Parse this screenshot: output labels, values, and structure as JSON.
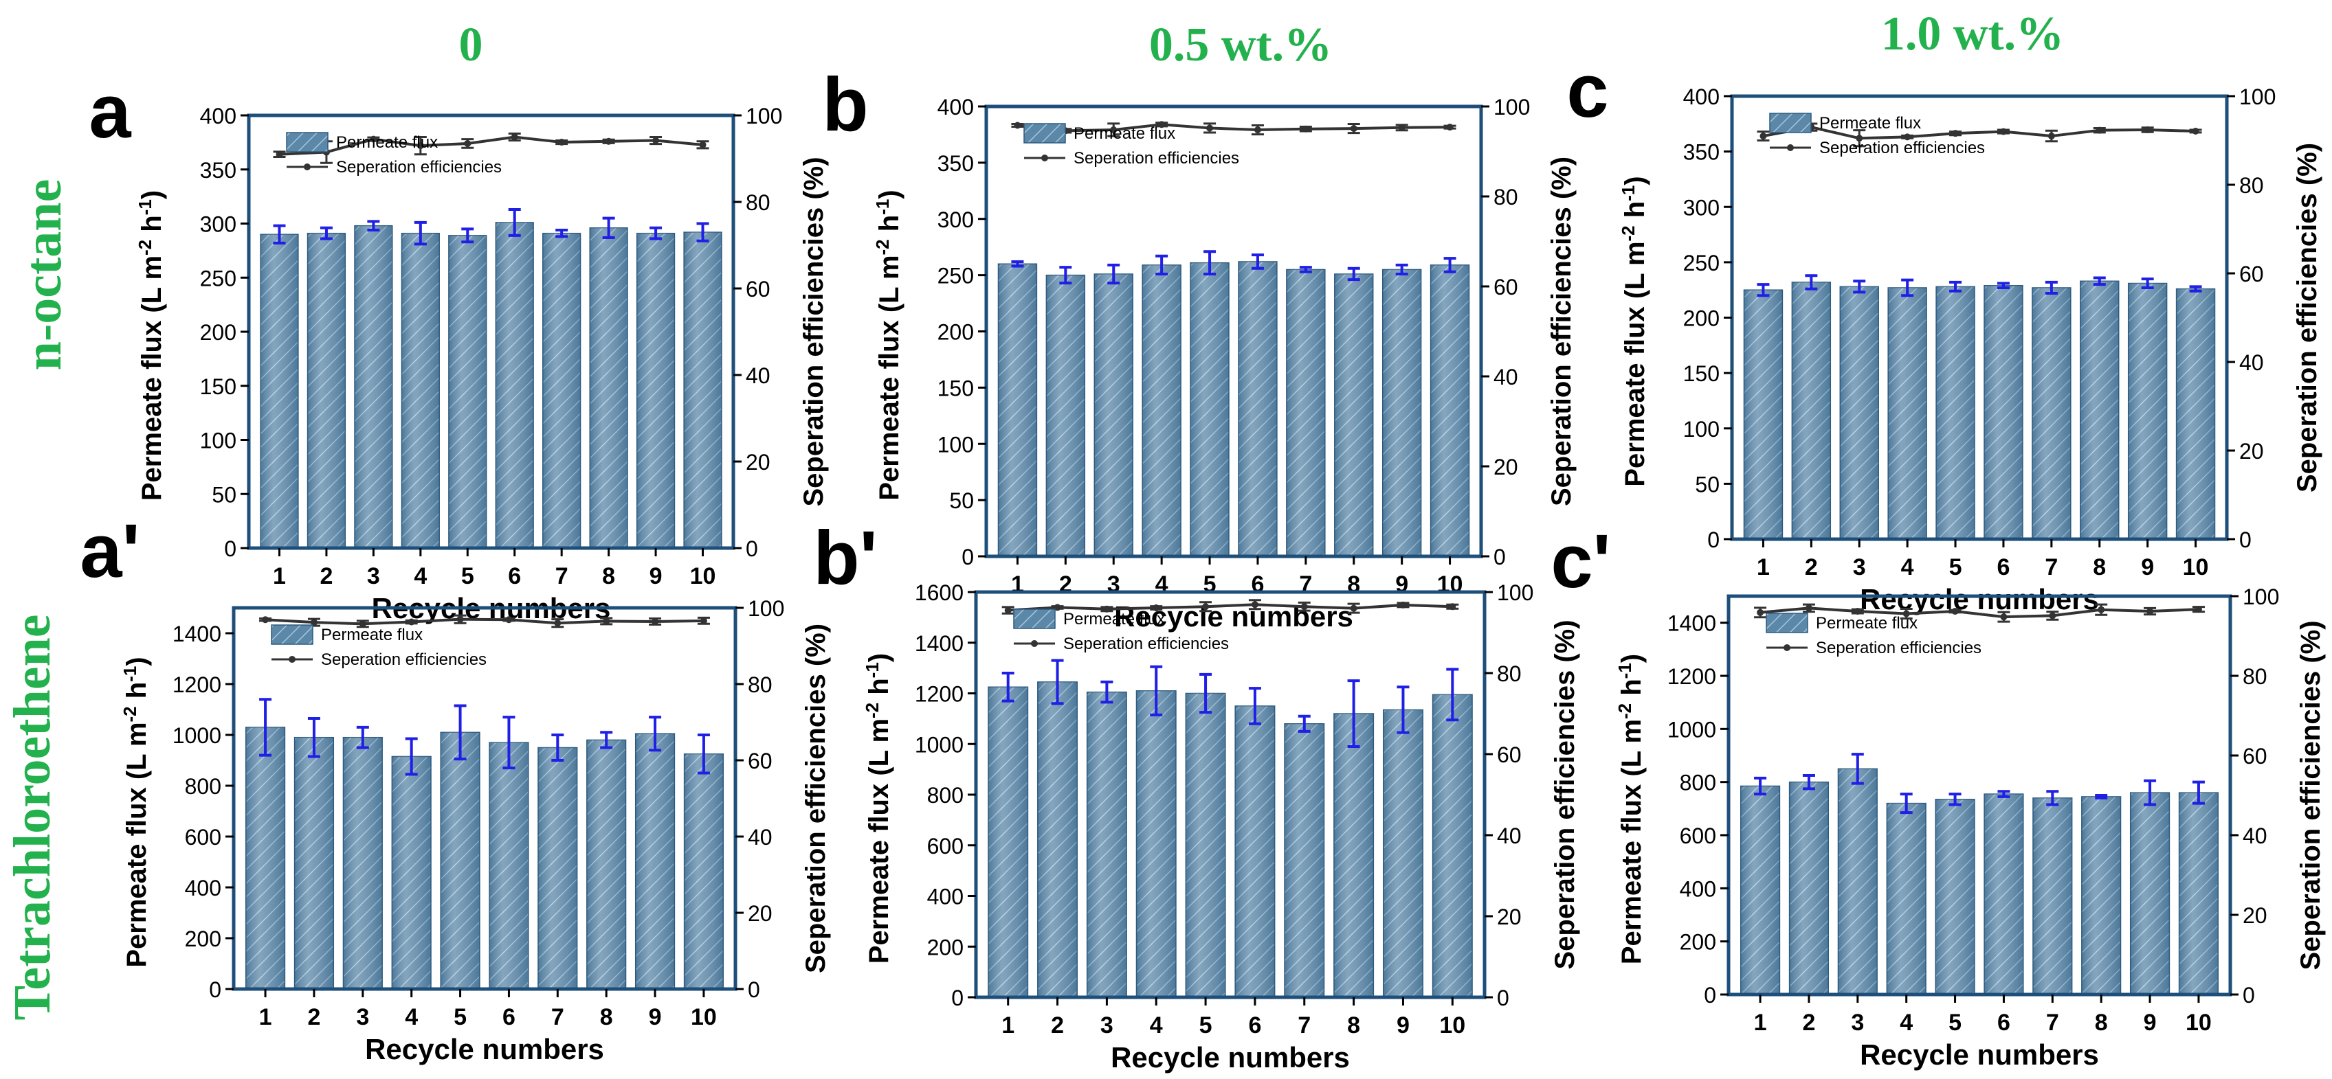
{
  "header": {
    "columns": [
      "0",
      "0.5 wt.%",
      "1.0 wt.%"
    ],
    "rows": [
      "n-octane",
      "Tetrachloroethene"
    ],
    "label_color": "#22b14c"
  },
  "styling": {
    "bar_color": "#5b87a8",
    "bar_highlight": "#a9c5da",
    "error_color": "#1f1fe6",
    "line_color": "#333333",
    "axis_color": "#1d4f7a"
  },
  "chart_data": [
    {
      "panel_label": "a",
      "type": "bar",
      "categories": [
        "1",
        "2",
        "3",
        "4",
        "5",
        "6",
        "7",
        "8",
        "9",
        "10"
      ],
      "series": [
        {
          "name": "Permeate flux",
          "axis": "left",
          "values": [
            290,
            291,
            298,
            291,
            289,
            301,
            291,
            296,
            291,
            292
          ],
          "errors": [
            8,
            5,
            4,
            10,
            6,
            12,
            3,
            9,
            5,
            8
          ]
        },
        {
          "name": "Seperation efficiencies",
          "axis": "right",
          "kind": "line",
          "values": [
            91,
            91.5,
            94.5,
            93,
            93.5,
            95,
            93.8,
            94,
            94.2,
            93.2
          ],
          "errors": [
            0.6,
            2.5,
            0.4,
            2,
            1,
            0.8,
            0.4,
            0.4,
            0.8,
            0.8
          ]
        }
      ],
      "xlabel": "Recycle numbers",
      "ylabel": "Permeate flux (L m⁻² h⁻¹)",
      "y2label": "Seperation efficiencies (%)",
      "ylim": [
        0,
        400
      ],
      "yticks": [
        0,
        50,
        100,
        150,
        200,
        250,
        300,
        350,
        400
      ],
      "y2lim": [
        0,
        100
      ],
      "y2ticks": [
        0,
        20,
        40,
        60,
        80,
        100
      ],
      "legend": "top-left"
    },
    {
      "panel_label": "b",
      "type": "bar",
      "categories": [
        "1",
        "2",
        "3",
        "4",
        "5",
        "6",
        "7",
        "8",
        "9",
        "10"
      ],
      "series": [
        {
          "name": "Permeate flux",
          "axis": "left",
          "values": [
            260,
            250,
            251,
            259,
            261,
            262,
            255,
            251,
            255,
            259
          ],
          "errors": [
            2,
            7,
            8,
            8,
            10,
            6,
            2,
            5,
            4,
            6
          ]
        },
        {
          "name": "Seperation efficiencies",
          "axis": "right",
          "kind": "line",
          "values": [
            95.8,
            94.6,
            94.8,
            96,
            95.2,
            94.8,
            95,
            95.1,
            95.3,
            95.4
          ],
          "errors": [
            0.3,
            0.4,
            1.4,
            0.4,
            1,
            1,
            0.5,
            1,
            0.6,
            0.3
          ]
        }
      ],
      "xlabel": "Recycle numbers",
      "ylabel": "Permeate flux (L m⁻² h⁻¹)",
      "y2label": "Seperation efficiencies (%)",
      "ylim": [
        0,
        400
      ],
      "yticks": [
        0,
        50,
        100,
        150,
        200,
        250,
        300,
        350,
        400
      ],
      "y2lim": [
        0,
        100
      ],
      "y2ticks": [
        0,
        20,
        40,
        60,
        80,
        100
      ],
      "legend": "top-left"
    },
    {
      "panel_label": "c",
      "type": "bar",
      "categories": [
        "1",
        "2",
        "3",
        "4",
        "5",
        "6",
        "7",
        "8",
        "9",
        "10"
      ],
      "series": [
        {
          "name": "Permeate flux",
          "axis": "left",
          "values": [
            225,
            232,
            228,
            227,
            228,
            229,
            227,
            233,
            231,
            226
          ],
          "errors": [
            5,
            6,
            5,
            7,
            4,
            2,
            5,
            3,
            4,
            2
          ]
        },
        {
          "name": "Seperation efficiencies",
          "axis": "right",
          "kind": "line",
          "values": [
            91,
            93,
            90.5,
            90.8,
            91.6,
            92,
            91,
            92.3,
            92.4,
            92.1
          ],
          "errors": [
            1,
            0.8,
            1.8,
            0.3,
            0.4,
            0.4,
            1.2,
            0.5,
            0.5,
            0.3
          ]
        }
      ],
      "xlabel": "Recycle numbers",
      "ylabel": "Permeate flux (L m⁻² h⁻¹)",
      "y2label": "Seperation efficiencies (%)",
      "ylim": [
        0,
        400
      ],
      "yticks": [
        0,
        50,
        100,
        150,
        200,
        250,
        300,
        350,
        400
      ],
      "y2lim": [
        0,
        100
      ],
      "y2ticks": [
        0,
        20,
        40,
        60,
        80,
        100
      ],
      "legend": "top-left"
    },
    {
      "panel_label": "a'",
      "type": "bar",
      "categories": [
        "1",
        "2",
        "3",
        "4",
        "5",
        "6",
        "7",
        "8",
        "9",
        "10"
      ],
      "series": [
        {
          "name": "Permeate flux",
          "axis": "left",
          "values": [
            1030,
            990,
            990,
            915,
            1010,
            970,
            950,
            980,
            1005,
            925
          ],
          "errors": [
            110,
            75,
            40,
            70,
            105,
            100,
            50,
            30,
            65,
            75
          ]
        },
        {
          "name": "Seperation efficiencies",
          "axis": "right",
          "kind": "line",
          "values": [
            96.9,
            96.2,
            95.8,
            96.3,
            97,
            96.9,
            96,
            96.5,
            96.4,
            96.6
          ],
          "errors": [
            0.3,
            0.9,
            0.8,
            0.4,
            1,
            0.3,
            1,
            0.8,
            0.8,
            0.8
          ]
        }
      ],
      "xlabel": "Recycle numbers",
      "ylabel": "Permeate flux (L m⁻² h⁻¹)",
      "y2label": "Seperation efficiencies (%)",
      "ylim": [
        0,
        1500
      ],
      "yticks": [
        0,
        200,
        400,
        600,
        800,
        1000,
        1200,
        1400
      ],
      "y2lim": [
        0,
        100
      ],
      "y2ticks": [
        0,
        20,
        40,
        60,
        80,
        100
      ],
      "legend": "top-left"
    },
    {
      "panel_label": "b'",
      "type": "bar",
      "categories": [
        "1",
        "2",
        "3",
        "4",
        "5",
        "6",
        "7",
        "8",
        "9",
        "10"
      ],
      "series": [
        {
          "name": "Permeate flux",
          "axis": "left",
          "values": [
            1225,
            1245,
            1205,
            1210,
            1200,
            1150,
            1080,
            1120,
            1135,
            1195
          ],
          "errors": [
            55,
            85,
            40,
            95,
            75,
            70,
            30,
            130,
            90,
            100
          ]
        },
        {
          "name": "Seperation efficiencies",
          "axis": "right",
          "kind": "line",
          "values": [
            95.5,
            96.2,
            95.8,
            96.1,
            96.4,
            96.9,
            96.4,
            96,
            96.8,
            96.4
          ],
          "errors": [
            0.8,
            0.3,
            0.5,
            0.4,
            1.1,
            1.1,
            1,
            1.1,
            0.5,
            0.5
          ]
        }
      ],
      "xlabel": "Recycle numbers",
      "ylabel": "Permeate flux (L m⁻² h⁻¹)",
      "y2label": "Seperation efficiencies (%)",
      "ylim": [
        0,
        1600
      ],
      "yticks": [
        0,
        200,
        400,
        600,
        800,
        1000,
        1200,
        1400,
        1600
      ],
      "y2lim": [
        0,
        100
      ],
      "y2ticks": [
        0,
        20,
        40,
        60,
        80,
        100
      ],
      "legend": "top-left"
    },
    {
      "panel_label": "c'",
      "type": "bar",
      "categories": [
        "1",
        "2",
        "3",
        "4",
        "5",
        "6",
        "7",
        "8",
        "9",
        "10"
      ],
      "series": [
        {
          "name": "Permeate flux",
          "axis": "left",
          "values": [
            785,
            800,
            850,
            720,
            735,
            755,
            740,
            745,
            760,
            760
          ],
          "errors": [
            30,
            25,
            55,
            35,
            20,
            10,
            25,
            5,
            45,
            40
          ]
        },
        {
          "name": "Seperation efficiencies",
          "axis": "right",
          "kind": "line",
          "values": [
            95.9,
            97,
            96.2,
            95.6,
            96.2,
            94.8,
            95.1,
            96.6,
            96.2,
            96.7
          ],
          "errors": [
            1.2,
            0.9,
            0.5,
            1.2,
            0.3,
            1.2,
            1,
            1.3,
            0.8,
            0.6
          ]
        }
      ],
      "xlabel": "Recycle numbers",
      "ylabel": "Permeate flux (L m⁻² h⁻¹)",
      "y2label": "Seperation efficiencies (%)",
      "ylim": [
        0,
        1500
      ],
      "yticks": [
        0,
        200,
        400,
        600,
        800,
        1000,
        1200,
        1400
      ],
      "y2lim": [
        0,
        100
      ],
      "y2ticks": [
        0,
        20,
        40,
        60,
        80,
        100
      ],
      "legend": "top-left"
    }
  ]
}
